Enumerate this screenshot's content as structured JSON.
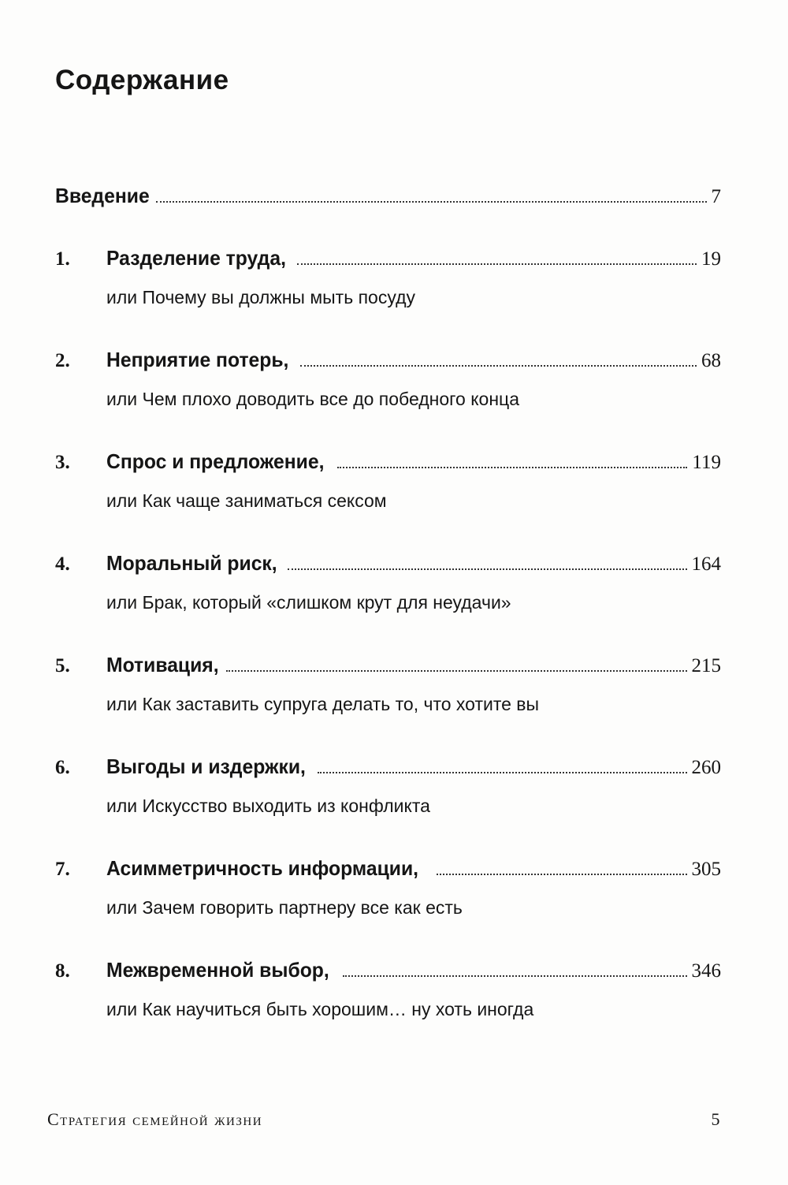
{
  "page_title": "Содержание",
  "intro": {
    "label": "Введение",
    "page": "7"
  },
  "chapters": [
    {
      "num": "1.",
      "title": "Разделение труда,",
      "subtitle": "или Почему вы должны мыть посуду",
      "page": "19"
    },
    {
      "num": "2.",
      "title": "Неприятие потерь,",
      "subtitle": "или Чем плохо доводить все до победного конца",
      "page": "68"
    },
    {
      "num": "3.",
      "title": "Спрос и предложение,",
      "subtitle": "или Как чаще заниматься сексом",
      "page": "119"
    },
    {
      "num": "4.",
      "title": "Моральный риск,",
      "subtitle": "или Брак, который «слишком крут для неудачи»",
      "page": "164"
    },
    {
      "num": "5.",
      "title": "Мотивация,",
      "subtitle": "или Как заставить супруга делать то, что хотите вы",
      "page": "215"
    },
    {
      "num": "6.",
      "title": "Выгоды и издержки,",
      "subtitle": "или Искусство выходить из конфликта",
      "page": "260"
    },
    {
      "num": "7.",
      "title": "Асимметричность информации,",
      "subtitle": "или Зачем говорить партнеру все как есть",
      "page": "305"
    },
    {
      "num": "8.",
      "title": "Межвременной выбор,",
      "subtitle": "или Как научиться быть хорошим… ну хоть иногда",
      "page": "346"
    }
  ],
  "footer": {
    "book_title": "Стратегия семейной жизни",
    "page_number": "5"
  }
}
